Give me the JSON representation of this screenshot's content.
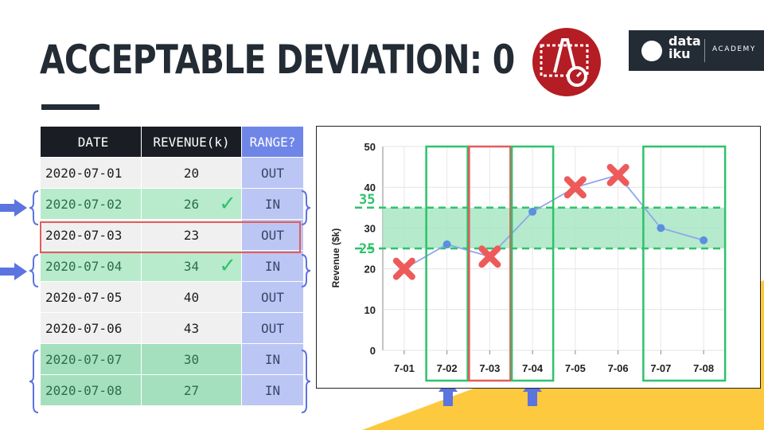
{
  "slide": {
    "title": "ACCEPTABLE DEVIATION: 0",
    "brand_name_line1": "data",
    "brand_name_line2": "iku",
    "brand_sub": "ACADEMY",
    "icon_name": "deviation-gauge-icon",
    "accent_color": "#b31d23",
    "dark_color": "#232b35",
    "yellow_color": "#fdc93e"
  },
  "table": {
    "headers": [
      "DATE",
      "REVENUE(k)",
      "RANGE?"
    ],
    "rows": [
      {
        "date": "2020-07-01",
        "revenue": "20",
        "range": "OUT",
        "status": "out",
        "check": ""
      },
      {
        "date": "2020-07-02",
        "revenue": "26",
        "range": "IN",
        "status": "in",
        "check": "✓"
      },
      {
        "date": "2020-07-03",
        "revenue": "23",
        "range": "OUT",
        "status": "out",
        "check": ""
      },
      {
        "date": "2020-07-04",
        "revenue": "34",
        "range": "IN",
        "status": "in",
        "check": "✓"
      },
      {
        "date": "2020-07-05",
        "revenue": "40",
        "range": "OUT",
        "status": "out",
        "check": ""
      },
      {
        "date": "2020-07-06",
        "revenue": "43",
        "range": "OUT",
        "status": "out",
        "check": ""
      },
      {
        "date": "2020-07-07",
        "revenue": "30",
        "range": "IN",
        "status": "in",
        "check": ""
      },
      {
        "date": "2020-07-08",
        "revenue": "27",
        "range": "IN",
        "status": "in",
        "check": ""
      }
    ]
  },
  "chart_data": {
    "type": "line",
    "categories": [
      "7-01",
      "7-02",
      "7-03",
      "7-04",
      "7-05",
      "7-06",
      "7-07",
      "7-08"
    ],
    "values": [
      20,
      26,
      23,
      34,
      40,
      43,
      30,
      27
    ],
    "out_of_range": [
      true,
      false,
      true,
      false,
      true,
      true,
      false,
      false
    ],
    "ylabel": "Revenue ($k)",
    "ylim": [
      0,
      50
    ],
    "yticks": [
      0,
      10,
      20,
      30,
      40,
      50
    ],
    "band": {
      "low": 25,
      "high": 35,
      "low_label": "25",
      "high_label": "35"
    },
    "series_color": "#8fa6ec",
    "point_color": "#5b8fe0",
    "x_marker_color": "#ee5a5a",
    "band_color": "#a8e6c4"
  }
}
